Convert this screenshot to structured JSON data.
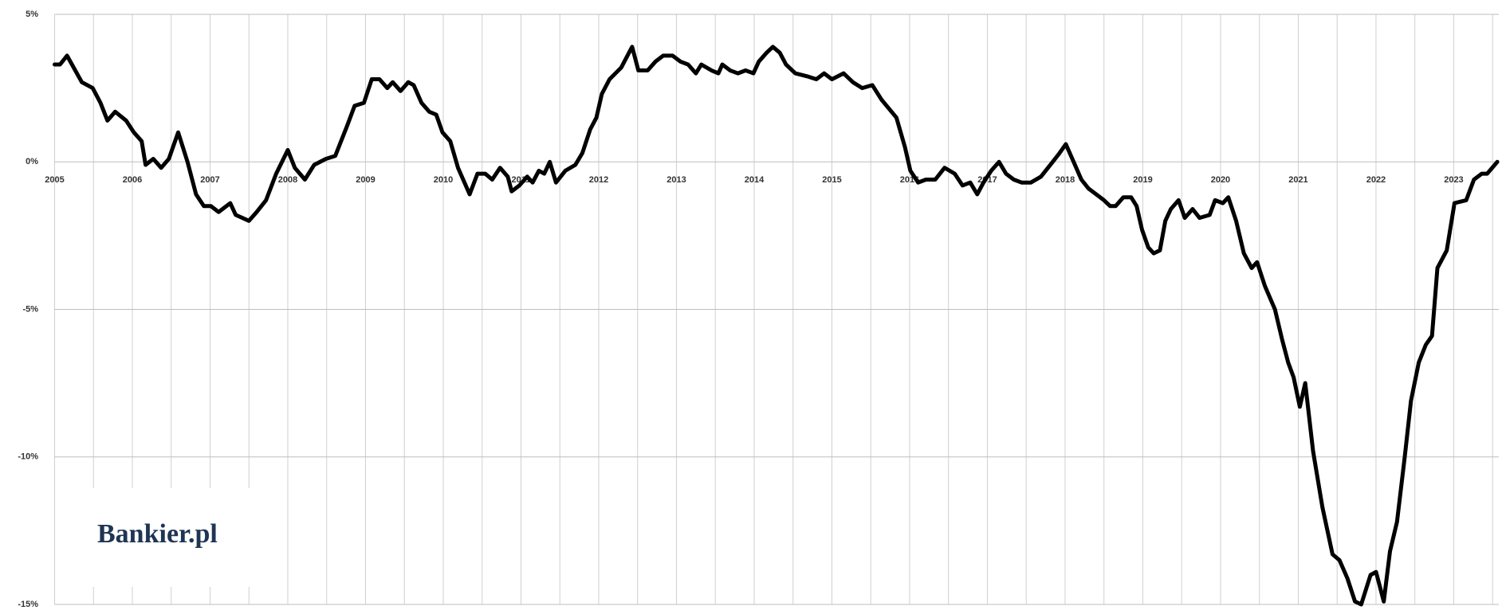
{
  "chart_data": {
    "type": "line",
    "logo": "Bankier.pl",
    "color": "#000000",
    "grid": true,
    "xlim": [
      2005,
      2023.58
    ],
    "xticks": [
      2005,
      2006,
      2007,
      2008,
      2009,
      2010,
      2011,
      2012,
      2013,
      2014,
      2015,
      2016,
      2017,
      2018,
      2019,
      2020,
      2021,
      2022,
      2023
    ],
    "ylim": [
      -15,
      5
    ],
    "yticks": [
      {
        "value": -15,
        "label": "-15%"
      },
      {
        "value": -10,
        "label": "-10%"
      },
      {
        "value": -5,
        "label": "-5%"
      },
      {
        "value": 0,
        "label": "0%"
      },
      {
        "value": 5,
        "label": "5%"
      }
    ],
    "x": [
      2005.0,
      2005.07,
      2005.16,
      2005.35,
      2005.49,
      2005.59,
      2005.68,
      2005.78,
      2005.92,
      2006.02,
      2006.12,
      2006.17,
      2006.27,
      2006.37,
      2006.47,
      2006.59,
      2006.71,
      2006.82,
      2006.92,
      2007.01,
      2007.11,
      2007.26,
      2007.33,
      2007.5,
      2007.6,
      2007.72,
      2007.85,
      2008.0,
      2008.09,
      2008.22,
      2008.34,
      2008.49,
      2008.61,
      2008.76,
      2008.86,
      2008.98,
      2009.08,
      2009.18,
      2009.28,
      2009.35,
      2009.45,
      2009.55,
      2009.62,
      2009.72,
      2009.82,
      2009.91,
      2009.99,
      2010.09,
      2010.19,
      2010.34,
      2010.44,
      2010.54,
      2010.63,
      2010.73,
      2010.83,
      2010.88,
      2010.98,
      2011.08,
      2011.15,
      2011.23,
      2011.3,
      2011.37,
      2011.45,
      2011.57,
      2011.7,
      2011.79,
      2011.89,
      2011.97,
      2012.04,
      2012.14,
      2012.29,
      2012.39,
      2012.43,
      2012.51,
      2012.63,
      2012.73,
      2012.83,
      2012.95,
      2013.05,
      2013.15,
      2013.25,
      2013.32,
      2013.45,
      2013.54,
      2013.59,
      2013.69,
      2013.79,
      2013.89,
      2013.99,
      2014.06,
      2014.16,
      2014.24,
      2014.33,
      2014.41,
      2014.53,
      2014.68,
      2014.8,
      2014.9,
      2015.0,
      2015.15,
      2015.27,
      2015.39,
      2015.52,
      2015.64,
      2015.83,
      2015.94,
      2016.01,
      2016.11,
      2016.21,
      2016.33,
      2016.45,
      2016.58,
      2016.68,
      2016.78,
      2016.87,
      2016.95,
      2017.05,
      2017.15,
      2017.24,
      2017.34,
      2017.44,
      2017.56,
      2017.69,
      2017.84,
      2017.93,
      2018.01,
      2018.11,
      2018.21,
      2018.3,
      2018.4,
      2018.5,
      2018.58,
      2018.65,
      2018.75,
      2018.85,
      2018.92,
      2018.99,
      2019.07,
      2019.14,
      2019.22,
      2019.29,
      2019.36,
      2019.46,
      2019.54,
      2019.64,
      2019.73,
      2019.86,
      2019.93,
      2020.03,
      2020.1,
      2020.2,
      2020.3,
      2020.4,
      2020.47,
      2020.57,
      2020.7,
      2020.79,
      2020.87,
      2020.94,
      2021.02,
      2021.09,
      2021.19,
      2021.31,
      2021.44,
      2021.53,
      2021.63,
      2021.73,
      2021.81,
      2021.93,
      2022.0,
      2022.1,
      2022.18,
      2022.27,
      2022.37,
      2022.45,
      2022.55,
      2022.64,
      2022.72,
      2022.79,
      2022.91,
      2023.01,
      2023.16,
      2023.26,
      2023.36,
      2023.43,
      2023.56
    ],
    "values": [
      3.3,
      3.3,
      3.6,
      2.7,
      2.5,
      2.0,
      1.4,
      1.7,
      1.4,
      1.0,
      0.7,
      -0.1,
      0.1,
      -0.2,
      0.1,
      1.0,
      0.0,
      -1.1,
      -1.5,
      -1.5,
      -1.7,
      -1.4,
      -1.8,
      -2.0,
      -1.7,
      -1.3,
      -0.4,
      0.4,
      -0.2,
      -0.6,
      -0.1,
      0.1,
      0.2,
      1.2,
      1.9,
      2.0,
      2.8,
      2.8,
      2.5,
      2.7,
      2.4,
      2.7,
      2.6,
      2.0,
      1.7,
      1.6,
      1.0,
      0.7,
      -0.2,
      -1.1,
      -0.4,
      -0.4,
      -0.6,
      -0.2,
      -0.5,
      -1.0,
      -0.8,
      -0.5,
      -0.7,
      -0.3,
      -0.4,
      0.0,
      -0.7,
      -0.3,
      -0.1,
      0.3,
      1.1,
      1.5,
      2.3,
      2.8,
      3.2,
      3.7,
      3.9,
      3.1,
      3.1,
      3.4,
      3.6,
      3.6,
      3.4,
      3.3,
      3.0,
      3.3,
      3.1,
      3.0,
      3.3,
      3.1,
      3.0,
      3.1,
      3.0,
      3.4,
      3.7,
      3.9,
      3.7,
      3.3,
      3.0,
      2.9,
      2.8,
      3.0,
      2.8,
      3.0,
      2.7,
      2.5,
      2.6,
      2.1,
      1.5,
      0.5,
      -0.3,
      -0.7,
      -0.6,
      -0.6,
      -0.2,
      -0.4,
      -0.8,
      -0.7,
      -1.1,
      -0.7,
      -0.3,
      0.0,
      -0.4,
      -0.6,
      -0.7,
      -0.7,
      -0.5,
      0.0,
      0.3,
      0.6,
      0.0,
      -0.6,
      -0.9,
      -1.1,
      -1.3,
      -1.5,
      -1.5,
      -1.2,
      -1.2,
      -1.5,
      -2.3,
      -2.9,
      -3.1,
      -3.0,
      -2.0,
      -1.6,
      -1.3,
      -1.9,
      -1.6,
      -1.9,
      -1.8,
      -1.3,
      -1.4,
      -1.2,
      -2.0,
      -3.1,
      -3.6,
      -3.4,
      -4.2,
      -5.0,
      -6.0,
      -6.8,
      -7.3,
      -8.3,
      -7.5,
      -9.8,
      -11.7,
      -13.3,
      -13.5,
      -14.1,
      -14.9,
      -15.0,
      -14.0,
      -13.9,
      -14.9,
      -13.2,
      -12.2,
      -10.0,
      -8.1,
      -6.8,
      -6.2,
      -5.9,
      -3.6,
      -3.0,
      -1.4,
      -1.3,
      -0.6,
      -0.4,
      -0.4,
      0.0
    ]
  }
}
